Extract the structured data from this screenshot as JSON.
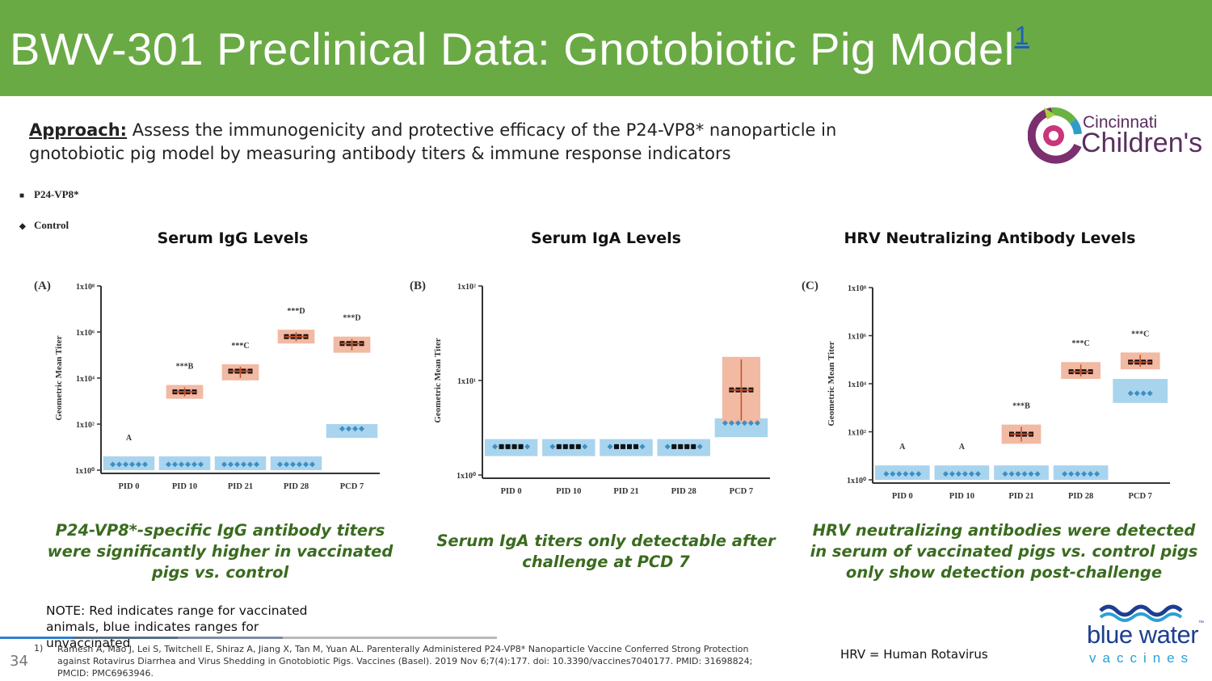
{
  "header": {
    "title": "BWV-301 Preclinical Data: Gnotobiotic Pig Model",
    "title_sup": "1",
    "bg_color": "#6aaa45"
  },
  "approach": {
    "label": "Approach:",
    "text": " Assess the immunogenicity and protective efficacy of the P24-VP8* nanoparticle in gnotobiotic pig model by measuring antibody titers & immune response indicators"
  },
  "logos": {
    "cincinnati_line1": "Cincinnati",
    "cincinnati_line2": "Children's",
    "bluewater_line1": "blue water",
    "bluewater_line2": "vaccines"
  },
  "legend": [
    {
      "marker": "square",
      "label": "P24-VP8*"
    },
    {
      "marker": "diamond",
      "label": "Control"
    }
  ],
  "chart_titles": [
    "Serum IgG Levels",
    "Serum IgA Levels",
    "HRV Neutralizing Antibody Levels"
  ],
  "captions": [
    "P24-VP8*-specific IgG antibody titers were significantly higher in vaccinated pigs vs. control",
    "Serum IgA titers only detectable after challenge at PCD 7",
    "HRV neutralizing antibodies were detected in serum of vaccinated pigs vs. control pigs only show detection post-challenge"
  ],
  "note": "NOTE: Red indicates range for vaccinated animals, blue indicates ranges for unvaccinated",
  "page_number": "34",
  "reference": {
    "number": "1)",
    "text": "Ramesh A, Mao J, Lei S, Twitchell E, Shiraz A, Jiang X, Tan M, Yuan AL. Parenterally Administered P24-VP8* Nanoparticle Vaccine Conferred Strong Protection against Rotavirus Diarrhea and Virus Shedding in Gnotobiotic Pigs. Vaccines (Basel). 2019 Nov 6;7(4):177. doi: 10.3390/vaccines7040177. PMID: 31698824; PMCID: PMC6963946."
  },
  "hrv_note": "HRV = Human Rotavirus",
  "colors": {
    "vaccinated": "#f2b9a3",
    "control": "#a9d4ee",
    "mean_vaccinated": "#c0502a",
    "mean_control": "#3d8fc2",
    "caption": "#3a6b1f",
    "progress": [
      "#2f7fd0",
      "#5a6f85",
      "#7c8ea0",
      "#b9b9b9"
    ]
  },
  "chart_data": [
    {
      "type": "scatter",
      "panel": "(A)",
      "title": "Serum IgG Levels",
      "ylabel": "Geometric Mean Titer",
      "yscale": "log",
      "ylim": [
        1,
        100000000
      ],
      "yticks": [
        "1x10⁰",
        "1x10²",
        "1x10⁴",
        "1x10⁶",
        "1x10⁸"
      ],
      "yticks_exp": [
        0,
        2,
        4,
        6,
        8
      ],
      "categories": [
        "PID 0",
        "PID 10",
        "PID 21",
        "PID 28",
        "PCD 7"
      ],
      "series": [
        {
          "name": "P24-VP8*",
          "values_log10": [
            null,
            3.4,
            4.3,
            5.8,
            5.5
          ],
          "range_log10": [
            null,
            [
              3.1,
              3.7
            ],
            [
              3.9,
              4.6
            ],
            [
              5.5,
              6.1
            ],
            [
              5.1,
              5.8
            ]
          ]
        },
        {
          "name": "Control",
          "values_log10": [
            0.25,
            0.25,
            0.25,
            0.25,
            1.8
          ],
          "range_log10": [
            [
              0,
              0.6
            ],
            [
              0,
              0.6
            ],
            [
              0,
              0.6
            ],
            [
              0,
              0.6
            ],
            [
              1.4,
              2.0
            ]
          ]
        }
      ],
      "annotations": [
        "A",
        "***B",
        "***C",
        "***D",
        "***D"
      ]
    },
    {
      "type": "scatter",
      "panel": "(B)",
      "title": "Serum IgA Levels",
      "ylabel": "Geometric Mean Titer",
      "yscale": "log",
      "ylim": [
        1,
        100
      ],
      "yticks": [
        "1x10⁰",
        "1x10¹",
        "1x10²"
      ],
      "yticks_exp": [
        0,
        1,
        2
      ],
      "categories": [
        "PID 0",
        "PID 10",
        "PID 21",
        "PID 28",
        "PCD 7"
      ],
      "series": [
        {
          "name": "P24-VP8*",
          "values_log10": [
            0.3,
            0.3,
            0.3,
            0.3,
            0.9
          ],
          "range_log10": [
            null,
            null,
            null,
            null,
            [
              0.55,
              1.25
            ]
          ]
        },
        {
          "name": "Control",
          "values_log10": [
            0.3,
            0.3,
            0.3,
            0.3,
            0.55
          ],
          "range_log10": [
            [
              0.2,
              0.38
            ],
            [
              0.2,
              0.38
            ],
            [
              0.2,
              0.38
            ],
            [
              0.2,
              0.38
            ],
            [
              0.4,
              0.6
            ]
          ]
        }
      ],
      "annotations": []
    },
    {
      "type": "scatter",
      "panel": "(C)",
      "title": "HRV Neutralizing Antibody Levels",
      "ylabel": "Geometric Mean Titer",
      "yscale": "log",
      "ylim": [
        1,
        100000000
      ],
      "yticks": [
        "1x10⁰",
        "1x10²",
        "1x10⁴",
        "1x10⁶",
        "1x10⁸"
      ],
      "yticks_exp": [
        0,
        2,
        4,
        6,
        8
      ],
      "categories": [
        "PID 0",
        "PID 10",
        "PID 21",
        "PID 28",
        "PCD 7"
      ],
      "series": [
        {
          "name": "P24-VP8*",
          "values_log10": [
            null,
            null,
            1.9,
            4.5,
            4.9
          ],
          "range_log10": [
            null,
            null,
            [
              1.5,
              2.3
            ],
            [
              4.2,
              4.9
            ],
            [
              4.6,
              5.3
            ]
          ]
        },
        {
          "name": "Control",
          "values_log10": [
            0.25,
            0.25,
            0.25,
            0.25,
            3.6
          ],
          "range_log10": [
            [
              0,
              0.6
            ],
            [
              0,
              0.6
            ],
            [
              0,
              0.6
            ],
            [
              0,
              0.6
            ],
            [
              3.2,
              4.2
            ]
          ]
        }
      ],
      "annotations": [
        "A",
        "A",
        "***B",
        "***C",
        "***C"
      ]
    }
  ]
}
